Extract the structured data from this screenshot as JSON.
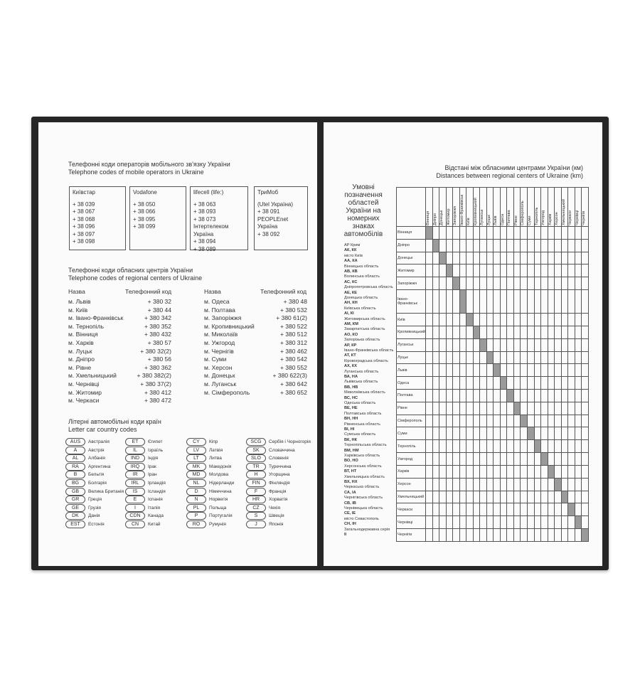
{
  "left_page": {
    "mobile": {
      "title": "Телефонні коди операторів мобільного зв'язку України",
      "subtitle": "Telephone codes of mobile operators in Ukraine",
      "operators": [
        [
          "Київстар",
          "+ 38 039",
          "+ 38 067",
          "+ 38 068",
          "+ 38 096",
          "+ 38 097",
          "+ 38 098"
        ],
        [
          "Vodafone",
          "+ 38 050",
          "+ 38 066",
          "+ 38 095",
          "+ 38 099"
        ],
        [
          "lifecell (life:)",
          "+ 38 063",
          "+ 38 093",
          "+ 38 073",
          "Інтертелеком Україна",
          "+ 38 094",
          "+ 38 089"
        ],
        [
          "ТриМоб",
          "(Utel Україна)",
          "+ 38 091",
          "PEOPLEnet",
          "Україна",
          "+ 38 092"
        ]
      ]
    },
    "regional": {
      "title": "Телефонні коди обласних центрів України",
      "subtitle": "Telephone codes of regional centers of Ukraine",
      "headers": [
        "Назва",
        "Телефонний код",
        "Назва",
        "Телефонний код"
      ],
      "left_rows": [
        [
          "м. Львів",
          "+ 380 32"
        ],
        [
          "м. Київ",
          "+ 380 44"
        ],
        [
          "м. Івано-Франківськ",
          "+ 380 342"
        ],
        [
          "м. Тернопіль",
          "+ 380 352"
        ],
        [
          "м. Вінниця",
          "+ 380 432"
        ],
        [
          "м. Харків",
          "+ 380 57"
        ],
        [
          "м. Луцьк",
          "+ 380 32(2)"
        ],
        [
          "м. Дніпро",
          "+ 380 56"
        ],
        [
          "м. Рівне",
          "+ 380 362"
        ],
        [
          "м. Хмельницький",
          "+ 380 382(2)"
        ],
        [
          "м. Чернівці",
          "+ 380 37(2)"
        ],
        [
          "м. Житомир",
          "+ 380 412"
        ],
        [
          "м. Черкаси",
          "+ 380 472"
        ]
      ],
      "right_rows": [
        [
          "м. Одеса",
          "+ 380 48"
        ],
        [
          "м. Полтава",
          "+ 380 532"
        ],
        [
          "м. Запоріжжя",
          "+ 380 61(2)"
        ],
        [
          "м. Кропивницький",
          "+ 380 522"
        ],
        [
          "м. Миколаїв",
          "+ 380 512"
        ],
        [
          "м. Ужгород",
          "+ 380 312"
        ],
        [
          "м. Чернігів",
          "+ 380 462"
        ],
        [
          "м. Суми",
          "+ 380 542"
        ],
        [
          "м. Херсон",
          "+ 380 552"
        ],
        [
          "м. Донецьк",
          "+ 380 622(3)"
        ],
        [
          "м. Луганськ",
          "+ 380 642"
        ],
        [
          "м. Сімферополь",
          "+ 380 652"
        ]
      ]
    },
    "country_codes": {
      "title": "Літерні автомобільні коди країн",
      "subtitle": "Letter car country codes",
      "columns": [
        [
          [
            "AUS",
            "Австралія"
          ],
          [
            "A",
            "Австрія"
          ],
          [
            "AL",
            "Албанія"
          ],
          [
            "RA",
            "Аргентина"
          ],
          [
            "B",
            "Бельгія"
          ],
          [
            "BG",
            "Болгарія"
          ],
          [
            "GB",
            "Велика Британія"
          ],
          [
            "GR",
            "Греція"
          ],
          [
            "GE",
            "Грузія"
          ],
          [
            "DK",
            "Данія"
          ],
          [
            "EST",
            "Естонія"
          ]
        ],
        [
          [
            "ET",
            "Єгипет"
          ],
          [
            "IL",
            "Ізраїль"
          ],
          [
            "IND",
            "Індія"
          ],
          [
            "IRQ",
            "Ірак"
          ],
          [
            "IR",
            "Іран"
          ],
          [
            "IRL",
            "Ірландія"
          ],
          [
            "IS",
            "Ісландія"
          ],
          [
            "E",
            "Іспанія"
          ],
          [
            "I",
            "Італія"
          ],
          [
            "CDN",
            "Канада"
          ],
          [
            "CN",
            "Китай"
          ]
        ],
        [
          [
            "CY",
            "Кіпр"
          ],
          [
            "LV",
            "Латвія"
          ],
          [
            "LT",
            "Литва"
          ],
          [
            "MK",
            "Македонія"
          ],
          [
            "MD",
            "Молдова"
          ],
          [
            "NL",
            "Нідерланди"
          ],
          [
            "D",
            "Німеччина"
          ],
          [
            "N",
            "Норвегія"
          ],
          [
            "PL",
            "Польща"
          ],
          [
            "P",
            "Португалія"
          ],
          [
            "RO",
            "Румунія"
          ]
        ],
        [
          [
            "SCG",
            "Сербія і Чорногорія"
          ],
          [
            "SK",
            "Словаччина"
          ],
          [
            "SLO",
            "Словенія"
          ],
          [
            "TR",
            "Туреччина"
          ],
          [
            "H",
            "Угорщина"
          ],
          [
            "FIN",
            "Фінляндія"
          ],
          [
            "F",
            "Франція"
          ],
          [
            "HR",
            "Хорватія"
          ],
          [
            "CZ",
            "Чехія"
          ],
          [
            "S",
            "Швеція"
          ],
          [
            "J",
            "Японія"
          ]
        ]
      ]
    }
  },
  "right_page": {
    "distances": {
      "title": "Відстані між обласними центрами України (км)",
      "subtitle": "Distances between regional centers of Ukraine (km)",
      "cities": [
        "Вінниця",
        "Дніпро",
        "Донецьк",
        "Житомир",
        "Запоріжжя",
        "Івано-Франківськ",
        "Київ",
        "Кропивницький",
        "Луганськ",
        "Луцьк",
        "Львів",
        "Одеса",
        "Полтава",
        "Рівне",
        "Сімферополь",
        "Суми",
        "Тернопіль",
        "Ужгород",
        "Харків",
        "Херсон",
        "Хмельницький",
        "Черкаси",
        "Чернівці",
        "Чернігів"
      ]
    },
    "plates": {
      "title": "Умовні позначення областей України на номерних знаках автомобілів",
      "entries": [
        [
          "АР Крим",
          "АК, КК"
        ],
        [
          "місто Київ",
          "АА, КА"
        ],
        [
          "Вінницька область",
          "АВ, КВ"
        ],
        [
          "Волинська область",
          "АС, КС"
        ],
        [
          "Дніпропетровська область",
          "АЕ, КЕ"
        ],
        [
          "Донецька область",
          "АН, КН"
        ],
        [
          "Київська область",
          "АІ, КІ"
        ],
        [
          "Житомирська область",
          "АМ, КМ"
        ],
        [
          "Закарпатська область",
          "АО, КО"
        ],
        [
          "Запорізька область",
          "АР, КР"
        ],
        [
          "Івано-Франківська область",
          "АТ, КТ"
        ],
        [
          "Кіровоградська область",
          "АХ, КХ"
        ],
        [
          "Луганська область",
          "ВА, НА"
        ],
        [
          "Львівська область",
          "ВВ, НВ"
        ],
        [
          "Миколаївська область",
          "ВС, НС"
        ],
        [
          "Одеська область",
          "ВЕ, НЕ"
        ],
        [
          "Полтавська область",
          "ВН, НН"
        ],
        [
          "Рівненська область",
          "ВІ, НІ"
        ],
        [
          "Сумська область",
          "ВК, НК"
        ],
        [
          "Тернопільська область",
          "ВМ, НМ"
        ],
        [
          "Харківська область",
          "ВО, НО"
        ],
        [
          "Херсонська область",
          "ВТ, НТ"
        ],
        [
          "Хмельницька область",
          "ВХ, НХ"
        ],
        [
          "Черкаська область",
          "СА, ІА"
        ],
        [
          "Чернігівська область",
          "СВ, ІВ"
        ],
        [
          "Чернівецька область",
          "СЕ, ІЕ"
        ],
        [
          "місто Севастополь",
          "СН, ІН"
        ],
        [
          "Загальнодержавна серія",
          "ІІ"
        ]
      ]
    }
  }
}
